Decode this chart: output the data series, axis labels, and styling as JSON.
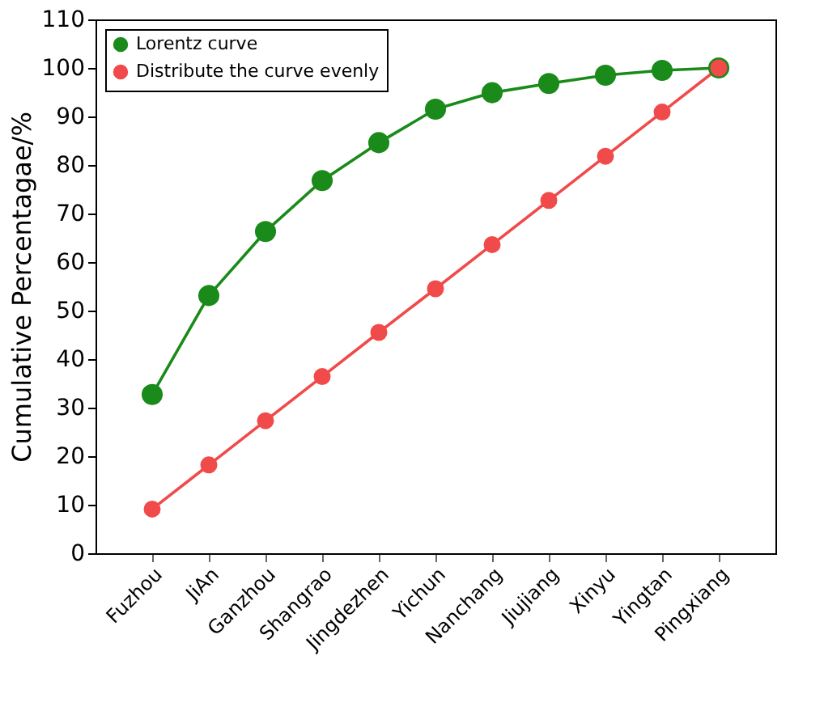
{
  "chart_data": {
    "type": "line",
    "ylabel": "Cumulative Percentagae/%",
    "categories": [
      "Fuzhou",
      "JiAn",
      "Ganzhou",
      "Shangrao",
      "Jingdezhen",
      "Yichun",
      "Nanchang",
      "Jiujiang",
      "Xinyu",
      "Yingtan",
      "Pingxiang"
    ],
    "series": [
      {
        "name": "Lorentz curve",
        "color": "#1a8a1a",
        "values": [
          32.7,
          53.1,
          66.3,
          76.8,
          84.6,
          91.5,
          94.9,
          96.8,
          98.5,
          99.5,
          100
        ]
      },
      {
        "name": "Distribute the curve evenly",
        "color": "#f04a4a",
        "values": [
          9.1,
          18.2,
          27.3,
          36.4,
          45.5,
          54.5,
          63.6,
          72.7,
          81.8,
          90.9,
          100
        ]
      }
    ],
    "ylim": [
      0,
      110
    ],
    "yticks": [
      0,
      10,
      20,
      30,
      40,
      50,
      60,
      70,
      80,
      90,
      100,
      110
    ],
    "grid": false,
    "legend": "top left",
    "marker": "circle",
    "line_style": "solid"
  }
}
